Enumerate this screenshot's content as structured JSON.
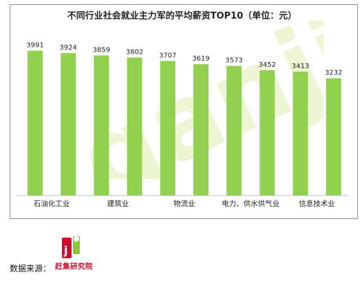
{
  "chart_data": {
    "type": "bar",
    "title": "不同行业社会就业主力军的平均薪资TOP10（单位：元）",
    "categories": [
      "石油化工业",
      "",
      "建筑业",
      "",
      "物流业",
      "",
      "电力、供水供气业",
      "",
      "信息技术业",
      ""
    ],
    "values": [
      3991,
      3924,
      3859,
      3802,
      3707,
      3619,
      3573,
      3452,
      3413,
      3232
    ],
    "ylim": [
      0,
      4400
    ],
    "bar_color": "#92d050",
    "grid": false,
    "legend": "none"
  },
  "source": {
    "label": "数据来源：",
    "logo_text": "赶集研究院",
    "logo_mark": "ji"
  },
  "colors": {
    "watermark": "#e8f0c8",
    "logo_red": "#c8102e",
    "logo_green": "#8dc63f"
  }
}
